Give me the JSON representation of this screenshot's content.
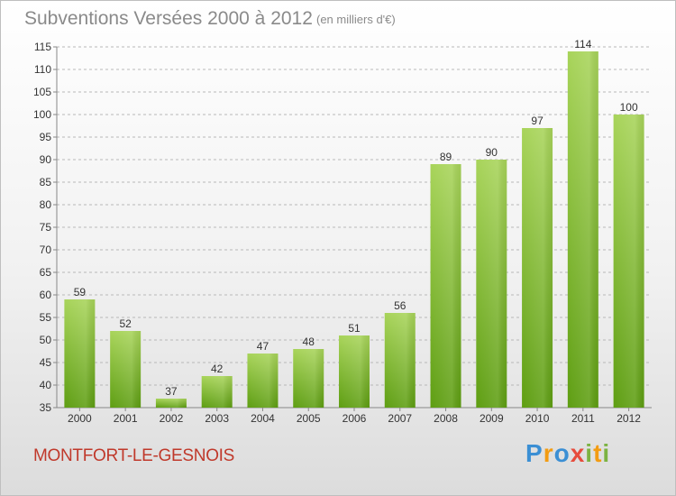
{
  "header": {
    "title": "Subventions Versées 2000 à 2012",
    "unit": "(en milliers d'€)"
  },
  "footer": {
    "place": "MONTFORT-LE-GESNOIS",
    "logo_text": [
      "P",
      "r",
      "o",
      "x",
      "i",
      "t",
      "i"
    ],
    "logo_colors": [
      "#3b8fd4",
      "#f39c12",
      "#e74c3c",
      "#7cb342"
    ]
  },
  "colors": {
    "bar_light": "#a8d45a",
    "bar_dark": "#5e9e12",
    "grid": "#b8b8b8",
    "axis_text": "#333333"
  },
  "chart_data": {
    "type": "bar",
    "categories": [
      "2000",
      "2001",
      "2002",
      "2003",
      "2004",
      "2005",
      "2006",
      "2007",
      "2008",
      "2009",
      "2010",
      "2011",
      "2012"
    ],
    "values": [
      59,
      52,
      37,
      42,
      47,
      48,
      51,
      56,
      89,
      90,
      97,
      114,
      100
    ],
    "ylim": [
      35,
      115
    ],
    "yticks": [
      35,
      40,
      45,
      50,
      55,
      60,
      65,
      70,
      75,
      80,
      85,
      90,
      95,
      100,
      105,
      110,
      115
    ],
    "grid": "horizontal dashed",
    "title": "Subventions Versées 2000 à 2012",
    "subtitle": "(en milliers d'€)"
  }
}
